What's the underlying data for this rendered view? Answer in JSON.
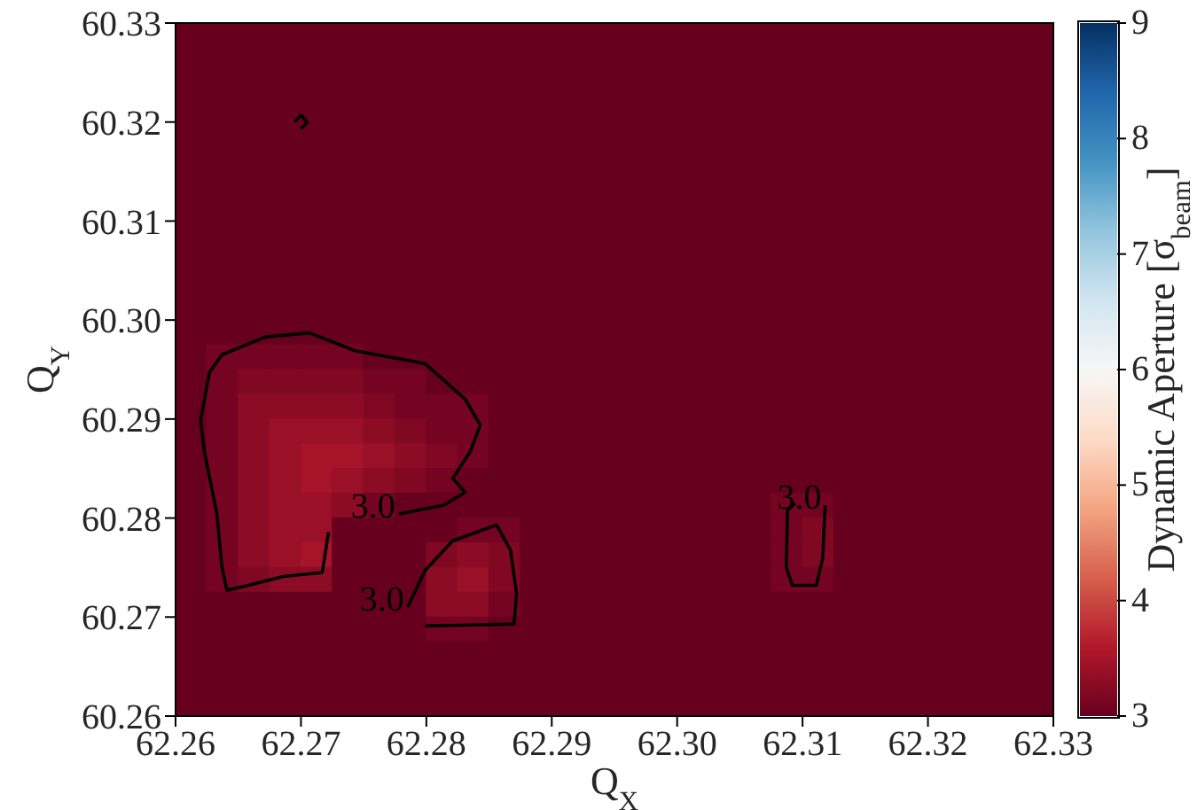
{
  "chart_data": {
    "type": "heatmap",
    "xlabel": "Q$_{X}$",
    "ylabel": "Q$_{Y}$",
    "clabel": "Dynamic Aperture [σ$_{beam}$]",
    "xlim": [
      62.26,
      62.33
    ],
    "xticks": [
      62.26,
      62.27,
      62.28,
      62.29,
      {
        "value": 62.3,
        "label": "62.30"
      },
      62.31,
      62.32,
      62.33
    ],
    "ylim": [
      60.26,
      60.33
    ],
    "yticks": [
      60.26,
      60.27,
      60.28,
      60.29,
      {
        "value": 60.3,
        "label": "60.30"
      },
      60.31,
      60.32,
      60.33
    ],
    "clim": [
      3,
      9
    ],
    "cticks": [
      3,
      4,
      5,
      6,
      7,
      8,
      9
    ],
    "cells": [
      [
        3,
        3,
        3,
        3,
        3,
        3,
        3,
        3,
        3,
        3,
        3,
        3,
        3,
        3,
        3,
        3,
        3,
        3,
        3,
        3,
        3,
        3,
        3,
        3,
        3,
        3,
        3,
        3
      ],
      [
        3,
        3,
        3,
        3,
        3,
        3,
        3,
        3,
        3,
        3,
        3,
        3,
        3,
        3,
        3,
        3,
        3,
        3,
        3,
        3,
        3,
        3,
        3,
        3,
        3,
        3,
        3,
        3
      ],
      [
        3,
        3,
        3,
        3,
        3,
        3,
        3,
        3,
        3,
        3,
        3,
        3,
        3,
        3,
        3,
        3,
        3,
        3,
        3,
        3,
        3,
        3,
        3,
        3,
        3,
        3,
        3,
        3
      ],
      [
        3,
        3,
        3,
        3,
        3,
        3,
        3,
        3,
        3,
        3,
        3,
        3,
        3,
        3,
        3,
        3,
        3,
        3,
        3,
        3,
        3,
        3,
        3,
        3,
        3,
        3,
        3,
        3
      ],
      [
        3,
        3,
        3,
        3,
        3,
        3,
        3,
        3,
        3,
        3,
        3,
        3,
        3,
        3,
        3,
        3,
        3,
        3,
        3,
        3,
        3,
        3,
        3,
        3,
        3,
        3,
        3,
        3
      ],
      [
        3,
        3,
        3,
        3,
        3,
        3,
        3,
        3,
        3,
        3,
        3,
        3,
        3,
        3,
        3,
        3,
        3,
        3,
        3,
        3,
        3,
        3,
        3,
        3,
        3,
        3,
        3,
        3
      ],
      [
        3,
        3,
        3,
        3,
        3,
        3,
        3,
        3,
        3,
        3,
        3,
        3,
        3,
        3,
        3,
        3,
        3,
        3,
        3,
        3,
        3,
        3,
        3,
        3,
        3,
        3,
        3,
        3
      ],
      [
        3,
        3,
        3,
        3,
        3,
        3,
        3,
        3,
        3,
        3,
        3,
        3,
        3,
        3,
        3,
        3,
        3,
        3,
        3,
        3,
        3,
        3,
        3,
        3,
        3,
        3,
        3,
        3
      ],
      [
        3,
        3,
        3,
        3,
        3,
        3,
        3,
        3,
        3,
        3,
        3,
        3,
        3,
        3,
        3,
        3,
        3,
        3,
        3,
        3,
        3,
        3,
        3,
        3,
        3,
        3,
        3,
        3
      ],
      [
        3,
        3,
        3,
        3,
        3,
        3,
        3,
        3,
        3,
        3,
        3,
        3,
        3,
        3,
        3,
        3,
        3,
        3,
        3,
        3,
        3,
        3,
        3,
        3,
        3,
        3,
        3,
        3
      ],
      [
        3,
        3,
        3,
        3,
        3,
        3,
        3,
        3,
        3,
        3,
        3,
        3,
        3,
        3,
        3,
        3,
        3,
        3,
        3,
        3,
        3,
        3,
        3,
        3,
        3,
        3,
        3,
        3
      ],
      [
        3,
        3,
        3,
        3,
        3,
        3,
        3,
        3,
        3,
        3,
        3,
        3,
        3,
        3,
        3,
        3,
        3,
        3,
        3,
        3,
        3,
        3,
        3,
        3,
        3,
        3,
        3,
        3
      ],
      [
        3,
        3,
        3,
        3,
        3,
        3,
        3,
        3,
        3,
        3,
        3,
        3,
        3,
        3,
        3,
        3,
        3,
        3,
        3,
        3,
        3,
        3,
        3,
        3,
        3,
        3,
        3,
        3
      ],
      [
        3,
        3.1,
        3.1,
        3.1,
        3.1,
        3.1,
        3,
        3,
        3,
        3,
        3,
        3,
        3,
        3,
        3,
        3,
        3,
        3,
        3,
        3,
        3,
        3,
        3,
        3,
        3,
        3,
        3,
        3
      ],
      [
        3,
        3.1,
        3.2,
        3.2,
        3.2,
        3.2,
        3.1,
        3.1,
        3,
        3,
        3,
        3,
        3,
        3,
        3,
        3,
        3,
        3,
        3,
        3,
        3,
        3,
        3,
        3,
        3,
        3,
        3,
        3
      ],
      [
        3,
        3.1,
        3.3,
        3.3,
        3.3,
        3.3,
        3.2,
        3.1,
        3.1,
        3.1,
        3,
        3,
        3,
        3,
        3,
        3,
        3,
        3,
        3,
        3,
        3,
        3,
        3,
        3,
        3,
        3,
        3,
        3
      ],
      [
        3,
        3.1,
        3.3,
        3.4,
        3.4,
        3.4,
        3.3,
        3.2,
        3.1,
        3.1,
        3,
        3,
        3,
        3,
        3,
        3,
        3,
        3,
        3,
        3,
        3,
        3,
        3,
        3,
        3,
        3,
        3,
        3
      ],
      [
        3,
        3.1,
        3.3,
        3.4,
        3.5,
        3.5,
        3.4,
        3.3,
        3.2,
        3.1,
        3,
        3,
        3,
        3,
        3,
        3,
        3,
        3,
        3,
        3,
        3,
        3,
        3,
        3,
        3,
        3,
        3,
        3
      ],
      [
        3,
        3.1,
        3.3,
        3.4,
        3.5,
        3.4,
        3.3,
        3.2,
        3.1,
        3,
        3,
        3,
        3,
        3,
        3,
        3,
        3,
        3,
        3,
        3,
        3,
        3,
        3,
        3,
        3,
        3,
        3,
        3
      ],
      [
        3,
        3.1,
        3.3,
        3.4,
        3.4,
        3.3,
        3.1,
        3,
        3,
        3,
        3,
        3,
        3,
        3,
        3,
        3,
        3,
        3,
        3,
        3.1,
        3.1,
        3,
        3,
        3,
        3,
        3,
        3,
        3
      ],
      [
        3,
        3.1,
        3.3,
        3.4,
        3.4,
        3,
        3,
        3,
        3,
        3.1,
        3.1,
        3,
        3,
        3,
        3,
        3,
        3,
        3,
        3,
        3.1,
        3.2,
        3,
        3,
        3,
        3,
        3,
        3,
        3
      ],
      [
        3,
        3.1,
        3.3,
        3.4,
        3.5,
        3,
        3,
        3,
        3.2,
        3.3,
        3.2,
        3,
        3,
        3,
        3,
        3,
        3,
        3,
        3,
        3.1,
        3.2,
        3,
        3,
        3,
        3,
        3,
        3,
        3
      ],
      [
        3,
        3.1,
        3.2,
        3.3,
        3.3,
        3,
        3,
        3,
        3.3,
        3.4,
        3.2,
        3,
        3,
        3,
        3,
        3,
        3,
        3,
        3,
        3.1,
        3.1,
        3,
        3,
        3,
        3,
        3,
        3,
        3
      ],
      [
        3,
        3,
        3,
        3,
        3,
        3,
        3,
        3,
        3.3,
        3.3,
        3.1,
        3,
        3,
        3,
        3,
        3,
        3,
        3,
        3,
        3,
        3,
        3,
        3,
        3,
        3,
        3,
        3,
        3
      ],
      [
        3,
        3,
        3,
        3,
        3,
        3,
        3,
        3,
        3.1,
        3.1,
        3,
        3,
        3,
        3,
        3,
        3,
        3,
        3,
        3,
        3,
        3,
        3,
        3,
        3,
        3,
        3,
        3,
        3
      ],
      [
        3,
        3,
        3,
        3,
        3,
        3,
        3,
        3,
        3,
        3,
        3,
        3,
        3,
        3,
        3,
        3,
        3,
        3,
        3,
        3,
        3,
        3,
        3,
        3,
        3,
        3,
        3,
        3
      ],
      [
        3,
        3,
        3,
        3,
        3,
        3,
        3,
        3,
        3,
        3,
        3,
        3,
        3,
        3,
        3,
        3,
        3,
        3,
        3,
        3,
        3,
        3,
        3,
        3,
        3,
        3,
        3,
        3
      ],
      [
        3,
        3,
        3,
        3,
        3,
        3,
        3,
        3,
        3,
        3,
        3,
        3,
        3,
        3,
        3,
        3,
        3,
        3,
        3,
        3,
        3,
        3,
        3,
        3,
        3,
        3,
        3,
        3
      ]
    ],
    "series": [
      {
        "type": "line",
        "color": "#000000",
        "x": [
          62.2722,
          62.2717,
          62.2686,
          62.2658,
          62.2641,
          62.2637,
          62.2633,
          62.2623,
          62.262,
          62.2627,
          62.2637,
          62.2672,
          62.2707,
          62.2743,
          62.2799,
          62.2831,
          62.2843,
          62.2835,
          62.2821,
          62.2831,
          62.2814,
          62.2778
        ],
        "values": [
          60.2786,
          60.2745,
          60.2741,
          60.2732,
          60.2727,
          60.275,
          60.2804,
          60.2867,
          60.2899,
          60.2947,
          60.2965,
          60.2983,
          60.2987,
          60.2969,
          60.2956,
          60.292,
          60.2894,
          60.2867,
          60.284,
          60.2826,
          60.2813,
          60.2804
        ]
      },
      {
        "type": "line",
        "color": "#000000",
        "x": [
          62.2785,
          62.2799,
          62.2821,
          62.2856,
          62.2867,
          62.2872,
          62.287,
          62.2799
        ],
        "values": [
          60.271,
          60.2747,
          60.2777,
          60.2793,
          60.2768,
          60.2724,
          60.2693,
          60.2691
        ]
      },
      {
        "type": "line",
        "color": "#000000",
        "x": [
          62.3094,
          62.3088,
          62.3087,
          62.3092,
          62.3111,
          62.3116,
          62.3118
        ],
        "values": [
          60.2815,
          60.2808,
          60.275,
          60.2732,
          60.2732,
          60.2759,
          60.2813
        ]
      },
      {
        "type": "line",
        "color": "#000000",
        "x": [
          62.2695,
          62.27,
          62.2705,
          62.27
        ],
        "values": [
          60.32,
          60.3207,
          60.32,
          60.3193
        ]
      }
    ],
    "annotations": [
      {
        "text": "3.0",
        "x": 62.2778,
        "y": 60.2804
      },
      {
        "text": "3.0",
        "x": 62.2785,
        "y": 60.271
      },
      {
        "text": "3.0",
        "x": 62.3118,
        "y": 60.2813
      }
    ],
    "grid": false,
    "legend": false
  }
}
